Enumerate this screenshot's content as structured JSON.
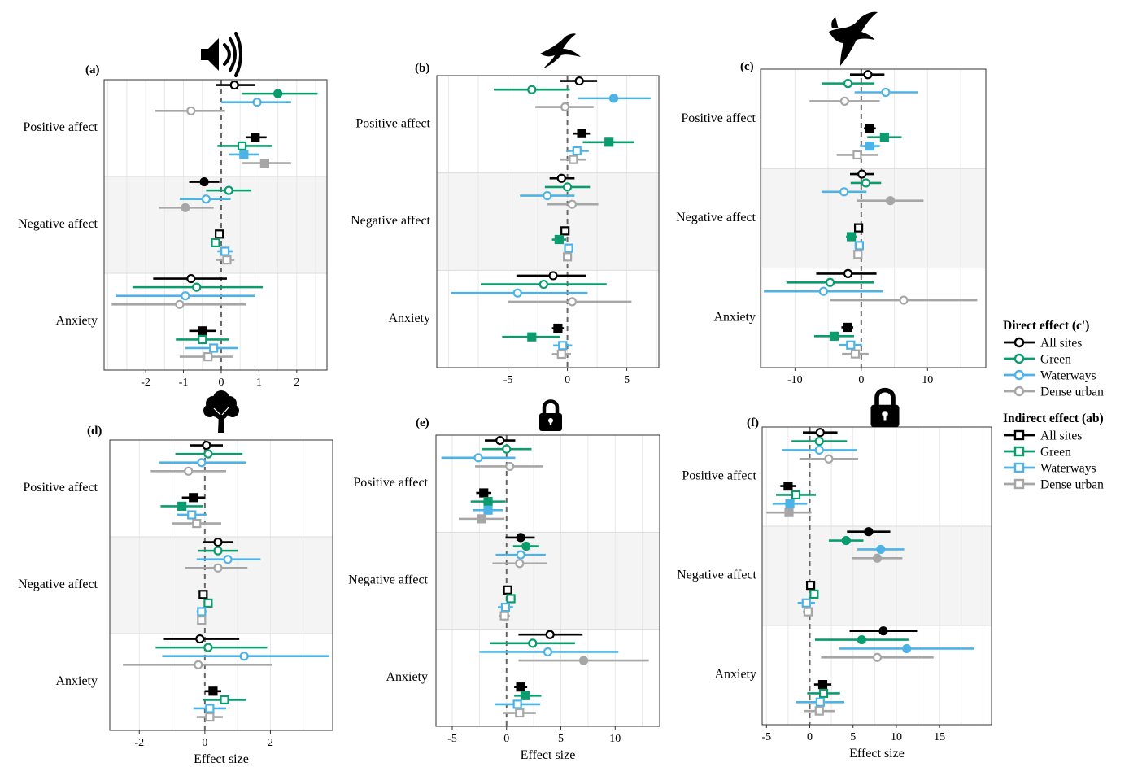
{
  "legend": {
    "direct_title": "Direct effect (c')",
    "indirect_title": "Indirect effect (ab)",
    "items": [
      "All sites",
      "Green",
      "Waterways",
      "Dense urban"
    ]
  },
  "colors": {
    "All sites": "#000000",
    "Green": "#0b9c6e",
    "Waterways": "#4db3e6",
    "Dense urban": "#a6a6a6",
    "band": "#f4f4f4",
    "gridline": "#e8e8e8"
  },
  "icons": [
    "speaker-icon",
    "swift-icon",
    "kite-icon",
    "tree-icon",
    "lock-open-icon",
    "lock-closed-icon"
  ],
  "chart_data": [
    {
      "type": "forest",
      "panel_label": "(a)",
      "icon": "speaker-icon",
      "xlabel": "",
      "xlim": [
        -3.1,
        2.8
      ],
      "xticks": [
        "-2",
        "-1",
        "0",
        "1",
        "2"
      ],
      "xtick_values": [
        -2,
        -1,
        0,
        1,
        2
      ],
      "groups": [
        "Positive affect",
        "Negative affect",
        "Anxiety"
      ],
      "series_order": [
        "All sites",
        "Green",
        "Waterways",
        "Dense urban"
      ],
      "direct": [
        [
          [
            0.35,
            -0.15,
            0.9
          ],
          [
            1.5,
            0.55,
            2.55
          ],
          [
            0.95,
            0.0,
            1.85
          ],
          [
            -0.8,
            -1.75,
            0.1
          ]
        ],
        [
          [
            -0.45,
            -0.85,
            -0.05
          ],
          [
            0.2,
            -0.4,
            0.8
          ],
          [
            -0.4,
            -1.1,
            0.25
          ],
          [
            -0.95,
            -1.65,
            -0.2
          ]
        ],
        [
          [
            -0.8,
            -1.8,
            0.15
          ],
          [
            -0.65,
            -2.35,
            1.1
          ],
          [
            -0.95,
            -2.8,
            0.9
          ],
          [
            -1.1,
            -2.9,
            0.65
          ]
        ]
      ],
      "indirect": [
        [
          [
            0.9,
            0.65,
            1.2
          ],
          [
            0.55,
            -0.1,
            1.35
          ],
          [
            0.6,
            0.2,
            1.0
          ],
          [
            1.15,
            0.55,
            1.85
          ]
        ],
        [
          [
            -0.05,
            -0.1,
            0.05
          ],
          [
            -0.15,
            -0.25,
            -0.05
          ],
          [
            0.1,
            -0.1,
            0.3
          ],
          [
            0.15,
            -0.15,
            0.35
          ]
        ],
        [
          [
            -0.5,
            -0.85,
            -0.15
          ],
          [
            -0.5,
            -1.2,
            0.2
          ],
          [
            -0.2,
            -0.95,
            0.45
          ],
          [
            -0.35,
            -1.1,
            0.3
          ]
        ]
      ]
    },
    {
      "type": "forest",
      "panel_label": "(b)",
      "icon": "swift-icon",
      "xlabel": "",
      "xlim": [
        -11,
        7.7
      ],
      "xticks": [
        "-5",
        "0",
        "5"
      ],
      "xtick_values": [
        -5,
        0,
        5
      ],
      "groups": [
        "Positive affect",
        "Negative affect",
        "Anxiety"
      ],
      "series_order": [
        "All sites",
        "Green",
        "Waterways",
        "Dense urban"
      ],
      "direct": [
        [
          [
            1.0,
            -0.6,
            2.5
          ],
          [
            -3.0,
            -6.2,
            0.2
          ],
          [
            3.9,
            0.9,
            7.0
          ],
          [
            -0.2,
            -2.7,
            2.2
          ]
        ],
        [
          [
            -0.5,
            -1.5,
            0.6
          ],
          [
            0.0,
            -1.9,
            1.9
          ],
          [
            -1.7,
            -4.0,
            0.6
          ],
          [
            0.4,
            -1.7,
            2.6
          ]
        ],
        [
          [
            -1.2,
            -4.3,
            1.6
          ],
          [
            -2.0,
            -7.3,
            3.3
          ],
          [
            -4.2,
            -9.8,
            1.7
          ],
          [
            0.4,
            -5.0,
            5.4
          ]
        ]
      ],
      "indirect": [
        [
          [
            1.2,
            0.5,
            1.9
          ],
          [
            3.5,
            1.3,
            5.6
          ],
          [
            0.8,
            -0.1,
            1.8
          ],
          [
            0.5,
            -0.6,
            1.6
          ]
        ],
        [
          [
            -0.2,
            -0.4,
            0.0
          ],
          [
            -0.7,
            -1.3,
            -0.1
          ],
          [
            0.1,
            -0.2,
            0.4
          ],
          [
            0.0,
            -0.3,
            0.3
          ]
        ],
        [
          [
            -0.8,
            -1.3,
            -0.3
          ],
          [
            -3.0,
            -5.5,
            -0.6
          ],
          [
            -0.4,
            -1.2,
            0.4
          ],
          [
            -0.5,
            -1.3,
            0.3
          ]
        ]
      ]
    },
    {
      "type": "forest",
      "panel_label": "(c)",
      "icon": "kite-icon",
      "xlabel": "",
      "xlim": [
        -15.2,
        18.8
      ],
      "xticks": [
        "-10",
        "0",
        "10"
      ],
      "xtick_values": [
        -10,
        0,
        10
      ],
      "groups": [
        "Positive affect",
        "Negative affect",
        "Anxiety"
      ],
      "series_order": [
        "All sites",
        "Green",
        "Waterways",
        "Dense urban"
      ],
      "direct": [
        [
          [
            1.0,
            -1.7,
            3.5
          ],
          [
            -2.0,
            -6.0,
            2.0
          ],
          [
            3.7,
            -1.0,
            8.5
          ],
          [
            -2.5,
            -7.8,
            2.8
          ]
        ],
        [
          [
            0.1,
            -1.7,
            1.9
          ],
          [
            0.7,
            -1.6,
            3.0
          ],
          [
            -2.6,
            -6.0,
            0.8
          ],
          [
            4.4,
            -0.6,
            9.4
          ]
        ],
        [
          [
            -2.0,
            -6.8,
            2.3
          ],
          [
            -4.7,
            -11.3,
            1.9
          ],
          [
            -5.7,
            -14.7,
            3.3
          ],
          [
            6.4,
            -4.7,
            17.5
          ]
        ]
      ],
      "indirect": [
        [
          [
            1.3,
            0.4,
            2.2
          ],
          [
            3.5,
            0.9,
            6.1
          ],
          [
            1.3,
            -0.2,
            2.8
          ],
          [
            -0.6,
            -3.7,
            2.5
          ]
        ],
        [
          [
            -0.4,
            -0.7,
            -0.1
          ],
          [
            -1.5,
            -2.3,
            -0.7
          ],
          [
            -0.3,
            -1.0,
            0.4
          ],
          [
            -0.5,
            -0.8,
            -0.2
          ]
        ],
        [
          [
            -2.1,
            -3.0,
            -1.2
          ],
          [
            -4.1,
            -7.1,
            -1.1
          ],
          [
            -1.6,
            -3.3,
            0.1
          ],
          [
            -0.9,
            -2.9,
            1.1
          ]
        ]
      ]
    },
    {
      "type": "forest",
      "panel_label": "(d)",
      "icon": "tree-icon",
      "xlabel": "Effect size",
      "xlim": [
        -2.9,
        3.9
      ],
      "xticks": [
        "-2",
        "0",
        "2"
      ],
      "xtick_values": [
        -2,
        0,
        2
      ],
      "groups": [
        "Positive affect",
        "Negative affect",
        "Anxiety"
      ],
      "series_order": [
        "All sites",
        "Green",
        "Waterways",
        "Dense urban"
      ],
      "direct": [
        [
          [
            0.05,
            -0.45,
            0.55
          ],
          [
            0.1,
            -0.9,
            1.15
          ],
          [
            -0.1,
            -1.4,
            1.25
          ],
          [
            -0.5,
            -1.65,
            0.65
          ]
        ],
        [
          [
            0.4,
            -0.05,
            0.85
          ],
          [
            0.4,
            -0.2,
            1.0
          ],
          [
            0.7,
            -0.25,
            1.7
          ],
          [
            0.4,
            -0.6,
            1.3
          ]
        ],
        [
          [
            -0.15,
            -1.25,
            1.05
          ],
          [
            0.1,
            -1.5,
            1.9
          ],
          [
            1.2,
            -1.3,
            3.8
          ],
          [
            -0.2,
            -2.5,
            2.05
          ]
        ]
      ],
      "indirect": [
        [
          [
            -0.35,
            -0.7,
            0.0
          ],
          [
            -0.7,
            -1.35,
            -0.05
          ],
          [
            -0.4,
            -0.85,
            0.05
          ],
          [
            -0.25,
            -1.0,
            0.5
          ]
        ],
        [
          [
            -0.05,
            -0.1,
            0.0
          ],
          [
            0.1,
            0.0,
            0.2
          ],
          [
            -0.1,
            -0.25,
            0.05
          ],
          [
            -0.1,
            -0.2,
            0.0
          ]
        ],
        [
          [
            0.25,
            0.0,
            0.5
          ],
          [
            0.6,
            -0.05,
            1.25
          ],
          [
            0.15,
            -0.35,
            0.65
          ],
          [
            0.15,
            -0.25,
            0.55
          ]
        ]
      ]
    },
    {
      "type": "forest",
      "panel_label": "(e)",
      "icon": "lock-open-icon",
      "xlabel": "Effect size",
      "xlim": [
        -6.5,
        14.1
      ],
      "xticks": [
        "-5",
        "0",
        "5",
        "10"
      ],
      "xtick_values": [
        -5,
        0,
        5,
        10
      ],
      "groups": [
        "Positive affect",
        "Negative affect",
        "Anxiety"
      ],
      "series_order": [
        "All sites",
        "Green",
        "Waterways",
        "Dense urban"
      ],
      "direct": [
        [
          [
            -0.6,
            -2.0,
            0.8
          ],
          [
            0.0,
            -2.3,
            2.3
          ],
          [
            -2.6,
            -6.0,
            0.8
          ],
          [
            0.3,
            -2.9,
            3.4
          ]
        ],
        [
          [
            1.3,
            -0.1,
            2.6
          ],
          [
            1.8,
            0.6,
            3.0
          ],
          [
            1.3,
            -1.0,
            3.6
          ],
          [
            1.2,
            -1.3,
            3.7
          ]
        ],
        [
          [
            4.0,
            1.1,
            7.0
          ],
          [
            2.4,
            -1.5,
            6.3
          ],
          [
            3.8,
            -2.5,
            10.3
          ],
          [
            7.1,
            1.1,
            13.1
          ]
        ]
      ],
      "indirect": [
        [
          [
            -2.1,
            -2.8,
            -1.4
          ],
          [
            -1.7,
            -3.3,
            -0.1
          ],
          [
            -1.7,
            -3.1,
            -0.3
          ],
          [
            -2.3,
            -4.4,
            -0.2
          ]
        ],
        [
          [
            0.1,
            -0.1,
            0.3
          ],
          [
            0.4,
            0.1,
            0.7
          ],
          [
            -0.1,
            -0.8,
            0.6
          ],
          [
            -0.2,
            -0.7,
            0.3
          ]
        ],
        [
          [
            1.3,
            0.7,
            1.9
          ],
          [
            1.7,
            0.7,
            3.2
          ],
          [
            1.0,
            -1.1,
            3.1
          ],
          [
            1.2,
            -0.3,
            2.7
          ]
        ]
      ]
    },
    {
      "type": "forest",
      "panel_label": "(f)",
      "icon": "lock-closed-icon",
      "xlabel": "Effect size",
      "xlim": [
        -5.5,
        21.0
      ],
      "xticks": [
        "-5",
        "0",
        "5",
        "10",
        "15"
      ],
      "xtick_values": [
        -5,
        0,
        5,
        10,
        15
      ],
      "groups": [
        "Positive affect",
        "Negative affect",
        "Anxiety"
      ],
      "series_order": [
        "All sites",
        "Green",
        "Waterways",
        "Dense urban"
      ],
      "direct": [
        [
          [
            1.2,
            -0.8,
            3.2
          ],
          [
            1.1,
            -2.1,
            4.3
          ],
          [
            1.1,
            -3.2,
            5.4
          ],
          [
            2.2,
            -1.2,
            5.6
          ]
        ],
        [
          [
            6.8,
            4.3,
            9.3
          ],
          [
            4.2,
            2.2,
            6.2
          ],
          [
            8.2,
            5.5,
            10.9
          ],
          [
            7.8,
            4.9,
            10.7
          ]
        ],
        [
          [
            8.5,
            4.6,
            12.4
          ],
          [
            6.0,
            0.6,
            11.4
          ],
          [
            11.2,
            3.4,
            19.0
          ],
          [
            7.8,
            1.3,
            14.3
          ]
        ]
      ],
      "indirect": [
        [
          [
            -2.5,
            -3.4,
            -1.6
          ],
          [
            -1.6,
            -3.9,
            0.7
          ],
          [
            -2.3,
            -4.3,
            -0.3
          ],
          [
            -2.4,
            -5.0,
            0.2
          ]
        ],
        [
          [
            0.1,
            -0.2,
            0.4
          ],
          [
            0.5,
            0.1,
            0.9
          ],
          [
            -0.4,
            -1.4,
            0.6
          ],
          [
            -0.2,
            -0.8,
            0.4
          ]
        ],
        [
          [
            1.5,
            0.5,
            2.5
          ],
          [
            1.6,
            -0.3,
            3.5
          ],
          [
            1.2,
            -1.6,
            4.0
          ],
          [
            1.1,
            -0.7,
            2.9
          ]
        ]
      ]
    }
  ]
}
